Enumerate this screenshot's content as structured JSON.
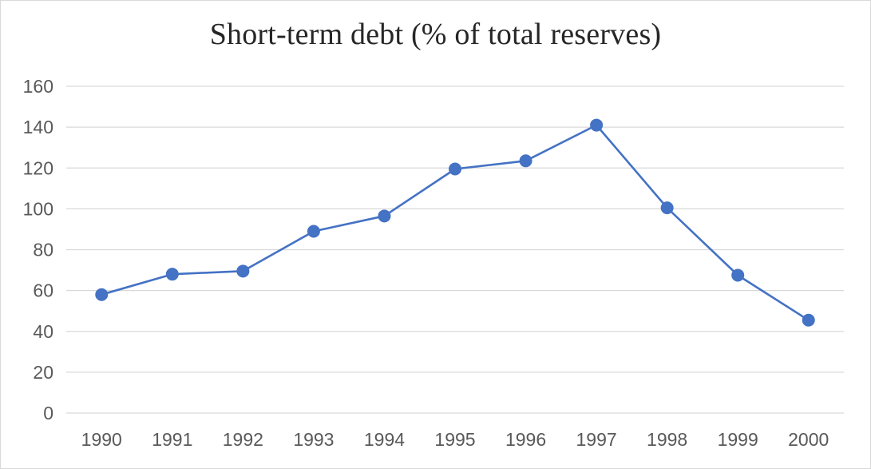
{
  "chart_data": {
    "type": "line",
    "title": "Short-term debt (% of total reserves)",
    "xlabel": "",
    "ylabel": "",
    "categories": [
      "1990",
      "1991",
      "1992",
      "1993",
      "1994",
      "1995",
      "1996",
      "1997",
      "1998",
      "1999",
      "2000"
    ],
    "series": [
      {
        "values": [
          58,
          68,
          69.5,
          89,
          96.5,
          119.5,
          123.5,
          141,
          100.5,
          67.5,
          45.5
        ]
      }
    ],
    "ylim": [
      0,
      160
    ],
    "yticks": [
      "0",
      "20",
      "40",
      "60",
      "80",
      "100",
      "120",
      "140",
      "160"
    ],
    "grid": true,
    "legend": "none",
    "colors": {
      "line": "#4472c4",
      "marker": "#4472c4",
      "grid": "#d9d9d9",
      "tick_text": "#595959"
    }
  }
}
